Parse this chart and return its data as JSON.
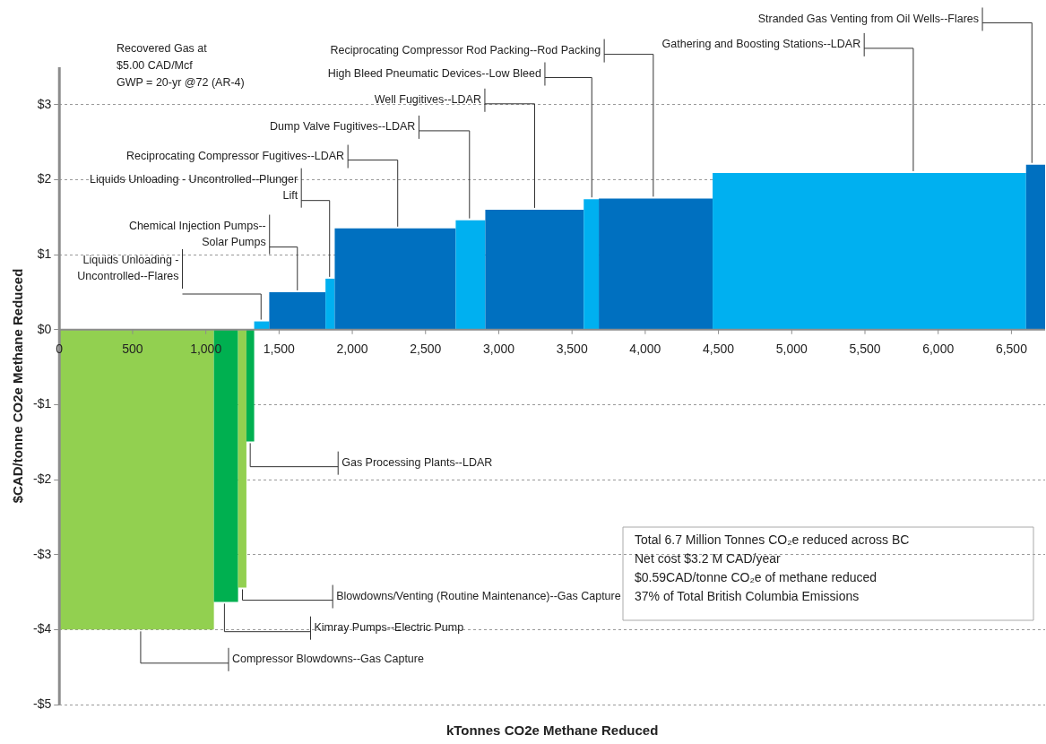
{
  "chart_data": {
    "type": "histogram",
    "xlabel": "kTonnes CO2e Methane Reduced",
    "ylabel": "$CAD/tonne CO2e Methane Reduced",
    "bins": [
      0,
      1055,
      1220,
      1277,
      1330,
      1433,
      1817,
      1880,
      2706,
      2908,
      3580,
      3683,
      4460,
      6600,
      6730
    ],
    "values": [
      -4.0,
      -3.63,
      -3.44,
      -1.49,
      0.11,
      0.5,
      0.68,
      1.35,
      1.46,
      1.6,
      1.74,
      1.75,
      2.09,
      2.2
    ],
    "colors": [
      "#92d050",
      "#00b050",
      "#92d050",
      "#00b050",
      "#00b0f0",
      "#0070c0",
      "#00b0f0",
      "#0070c0",
      "#00b0f0",
      "#0070c0",
      "#00b0f0",
      "#0070c0",
      "#00b0f0",
      "#0070c0"
    ],
    "xlim": [
      0,
      6730
    ],
    "ylim": [
      -5,
      3.5
    ],
    "xticks": [
      0,
      500,
      {
        "value": 1000,
        "label": "1,000"
      },
      {
        "value": 1500,
        "label": "1,500"
      },
      {
        "value": 2000,
        "label": "2,000"
      },
      {
        "value": 2500,
        "label": "2,500"
      },
      {
        "value": 3000,
        "label": "3,000"
      },
      {
        "value": 3500,
        "label": "3,500"
      },
      {
        "value": 4000,
        "label": "4,000"
      },
      {
        "value": 4500,
        "label": "4,500"
      },
      {
        "value": 5000,
        "label": "5,000"
      },
      {
        "value": 5500,
        "label": "5,500"
      },
      {
        "value": 6000,
        "label": "6,000"
      },
      {
        "value": 6500,
        "label": "6,500"
      }
    ],
    "yticks": [
      {
        "value": -5,
        "label": "-$5"
      },
      {
        "value": -4,
        "label": "-$4"
      },
      {
        "value": -3,
        "label": "-$3"
      },
      {
        "value": -2,
        "label": "-$2"
      },
      {
        "value": -1,
        "label": "-$1"
      },
      {
        "value": 0,
        "label": "$0"
      },
      {
        "value": 1,
        "label": "$1"
      },
      {
        "value": 2,
        "label": "$2"
      },
      {
        "value": 3,
        "label": "$3"
      }
    ],
    "grid": "y",
    "annotations": [
      {
        "text": "Compressor Blowdowns--Gas Capture",
        "x": 555,
        "y": -4.0
      },
      {
        "text": "Kimray Pumps--Electric Pump",
        "x": 1127,
        "y": -3.63
      },
      {
        "text": "Blowdowns/Venting (Routine Maintenance)--Gas Capture",
        "x": 1250,
        "y": -3.44
      },
      {
        "text": "Gas Processing Plants--LDAR",
        "x": 1303,
        "y": -1.49
      },
      {
        "text": "Liquids Unloading - Uncontrolled--Flares",
        "x": 1377,
        "y": 0.11
      },
      {
        "text": "Chemical Injection Pumps--Solar Pumps",
        "x": 1625,
        "y": 0.5
      },
      {
        "text": "Liquids Unloading - Uncontrolled--Plunger Lift",
        "x": 1845,
        "y": 0.68
      },
      {
        "text": "Reciprocating Compressor Fugitives--LDAR",
        "x": 2310,
        "y": 1.35
      },
      {
        "text": "Dump Valve Fugitives--LDAR",
        "x": 2800,
        "y": 1.46
      },
      {
        "text": "Well Fugitives--LDAR",
        "x": 3245,
        "y": 1.6
      },
      {
        "text": "High Bleed Pneumatic Devices--Low Bleed",
        "x": 3635,
        "y": 1.74
      },
      {
        "text": "Reciprocating Compressor Rod Packing--Rod Packing",
        "x": 4055,
        "y": 1.75
      },
      {
        "text": "Gathering and Boosting Stations--LDAR",
        "x": 5830,
        "y": 2.09
      },
      {
        "text": "Stranded Gas Venting from Oil Wells--Flares",
        "x": 6640,
        "y": 2.2
      },
      "Recovered Gas at\n$5.00 CAD/Mcf\nGWP = 20-yr @72 (AR-4)",
      "Total 6.7 Million Tonnes CO₂e reduced across BC\nNet cost $3.2 M CAD/year\n$0.59CAD/tonne CO₂e of methane reduced\n37% of Total British Columbia Emissions"
    ]
  }
}
